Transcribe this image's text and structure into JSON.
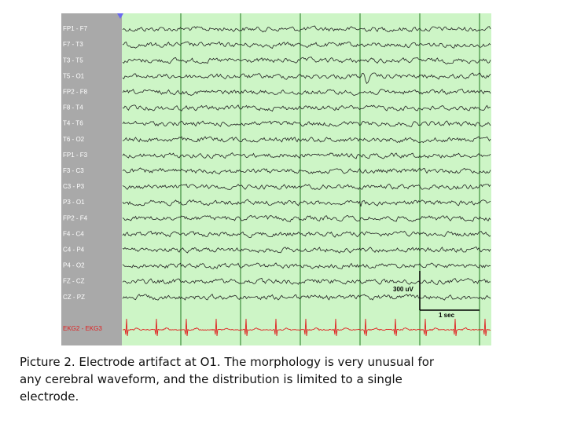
{
  "figure": {
    "channels": [
      "FP1 - F7",
      "F7 - T3",
      "T3 - T5",
      "T5 - O1",
      "FP2 - F8",
      "F8 - T4",
      "T4 - T6",
      "T6 - O2",
      "FP1 - F3",
      "F3 - C3",
      "C3 - P3",
      "P3 - O1",
      "FP2 - F4",
      "F4 - C4",
      "C4 - P4",
      "P4 - O2",
      "FZ - CZ",
      "CZ - PZ"
    ],
    "ekg_channel": "EKG2 - EKG3",
    "amplitude_scale": "300 uV",
    "time_scale": "1 sec"
  },
  "caption_lines": [
    "Picture 2. Electrode artifact at O1. The morphology is very unusual for",
    "any cerebral waveform, and the distribution is limited to a single",
    "electrode."
  ]
}
